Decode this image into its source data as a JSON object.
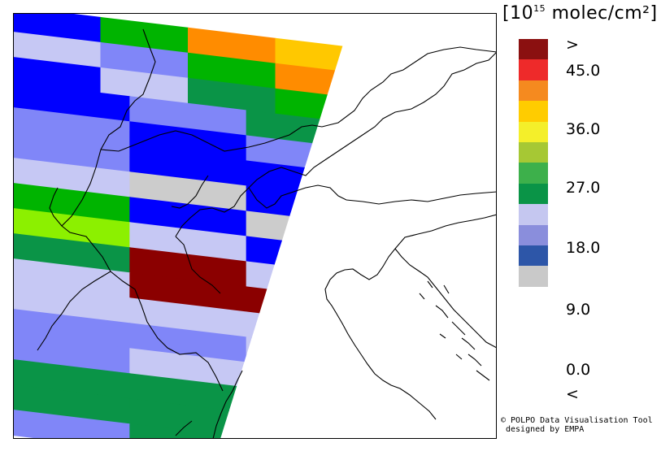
{
  "legend": {
    "title_base": "10",
    "title_exp": "15",
    "title_unit": "molec/cm²",
    "classes": [
      {
        "color": "#8b1010"
      },
      {
        "color": "#ee2a2a"
      },
      {
        "color": "#f58a1f"
      },
      {
        "color": "#ffcc00"
      },
      {
        "color": "#f4ef2a"
      },
      {
        "color": "#a6c834"
      },
      {
        "color": "#3db04b"
      },
      {
        "color": "#0a9447"
      },
      {
        "color": "#c5c7f0"
      },
      {
        "color": "#8a8edc"
      },
      {
        "color": "#2d56a8"
      },
      {
        "color": "#c9c9c9"
      }
    ],
    "labels": [
      ">",
      "45.0",
      "36.0",
      "27.0",
      "18.0",
      "9.0",
      "0.0",
      "<"
    ]
  },
  "credits": {
    "line1": "© POLPO Data Visualisation Tool",
    "line2": "designed by EMPA"
  },
  "map": {
    "colors": {
      "darkred": "#8b0000",
      "orange": "#ff8c00",
      "gold": "#ffc800",
      "lime": "#8cf000",
      "brightgreen": "#00b400",
      "green": "#0a9447",
      "lightlav": "#c6c8f4",
      "periwinkle": "#8086f8",
      "blue": "#0000ff",
      "gray": "#cccccc"
    },
    "pixel_rows": [
      [
        "blue",
        "brightgreen",
        "orange",
        "gold"
      ],
      [
        "lightlav",
        "periwinkle",
        "brightgreen",
        "orange"
      ],
      [
        "blue",
        "lightlav",
        "green",
        "brightgreen"
      ],
      [
        "blue",
        "periwinkle",
        "green"
      ],
      [
        "periwinkle",
        "blue",
        "periwinkle"
      ],
      [
        "periwinkle",
        "blue",
        "blue"
      ],
      [
        "lightlav",
        "gray",
        "blue"
      ],
      [
        "brightgreen",
        "blue",
        "gray"
      ],
      [
        "lime",
        "lightlav",
        "blue"
      ],
      [
        "green",
        "darkred",
        "lightlav"
      ],
      [
        "lightlav",
        "darkred",
        "darkred"
      ],
      [
        "lightlav",
        "lightlav",
        "lightlav"
      ],
      [
        "periwinkle",
        "periwinkle",
        "lightlav"
      ],
      [
        "periwinkle",
        "lightlav",
        "periwinkle"
      ],
      [
        "green",
        "green",
        "lightlav"
      ],
      [
        "green",
        "green",
        "green"
      ],
      [
        "periwinkle",
        "green",
        "green"
      ]
    ]
  }
}
